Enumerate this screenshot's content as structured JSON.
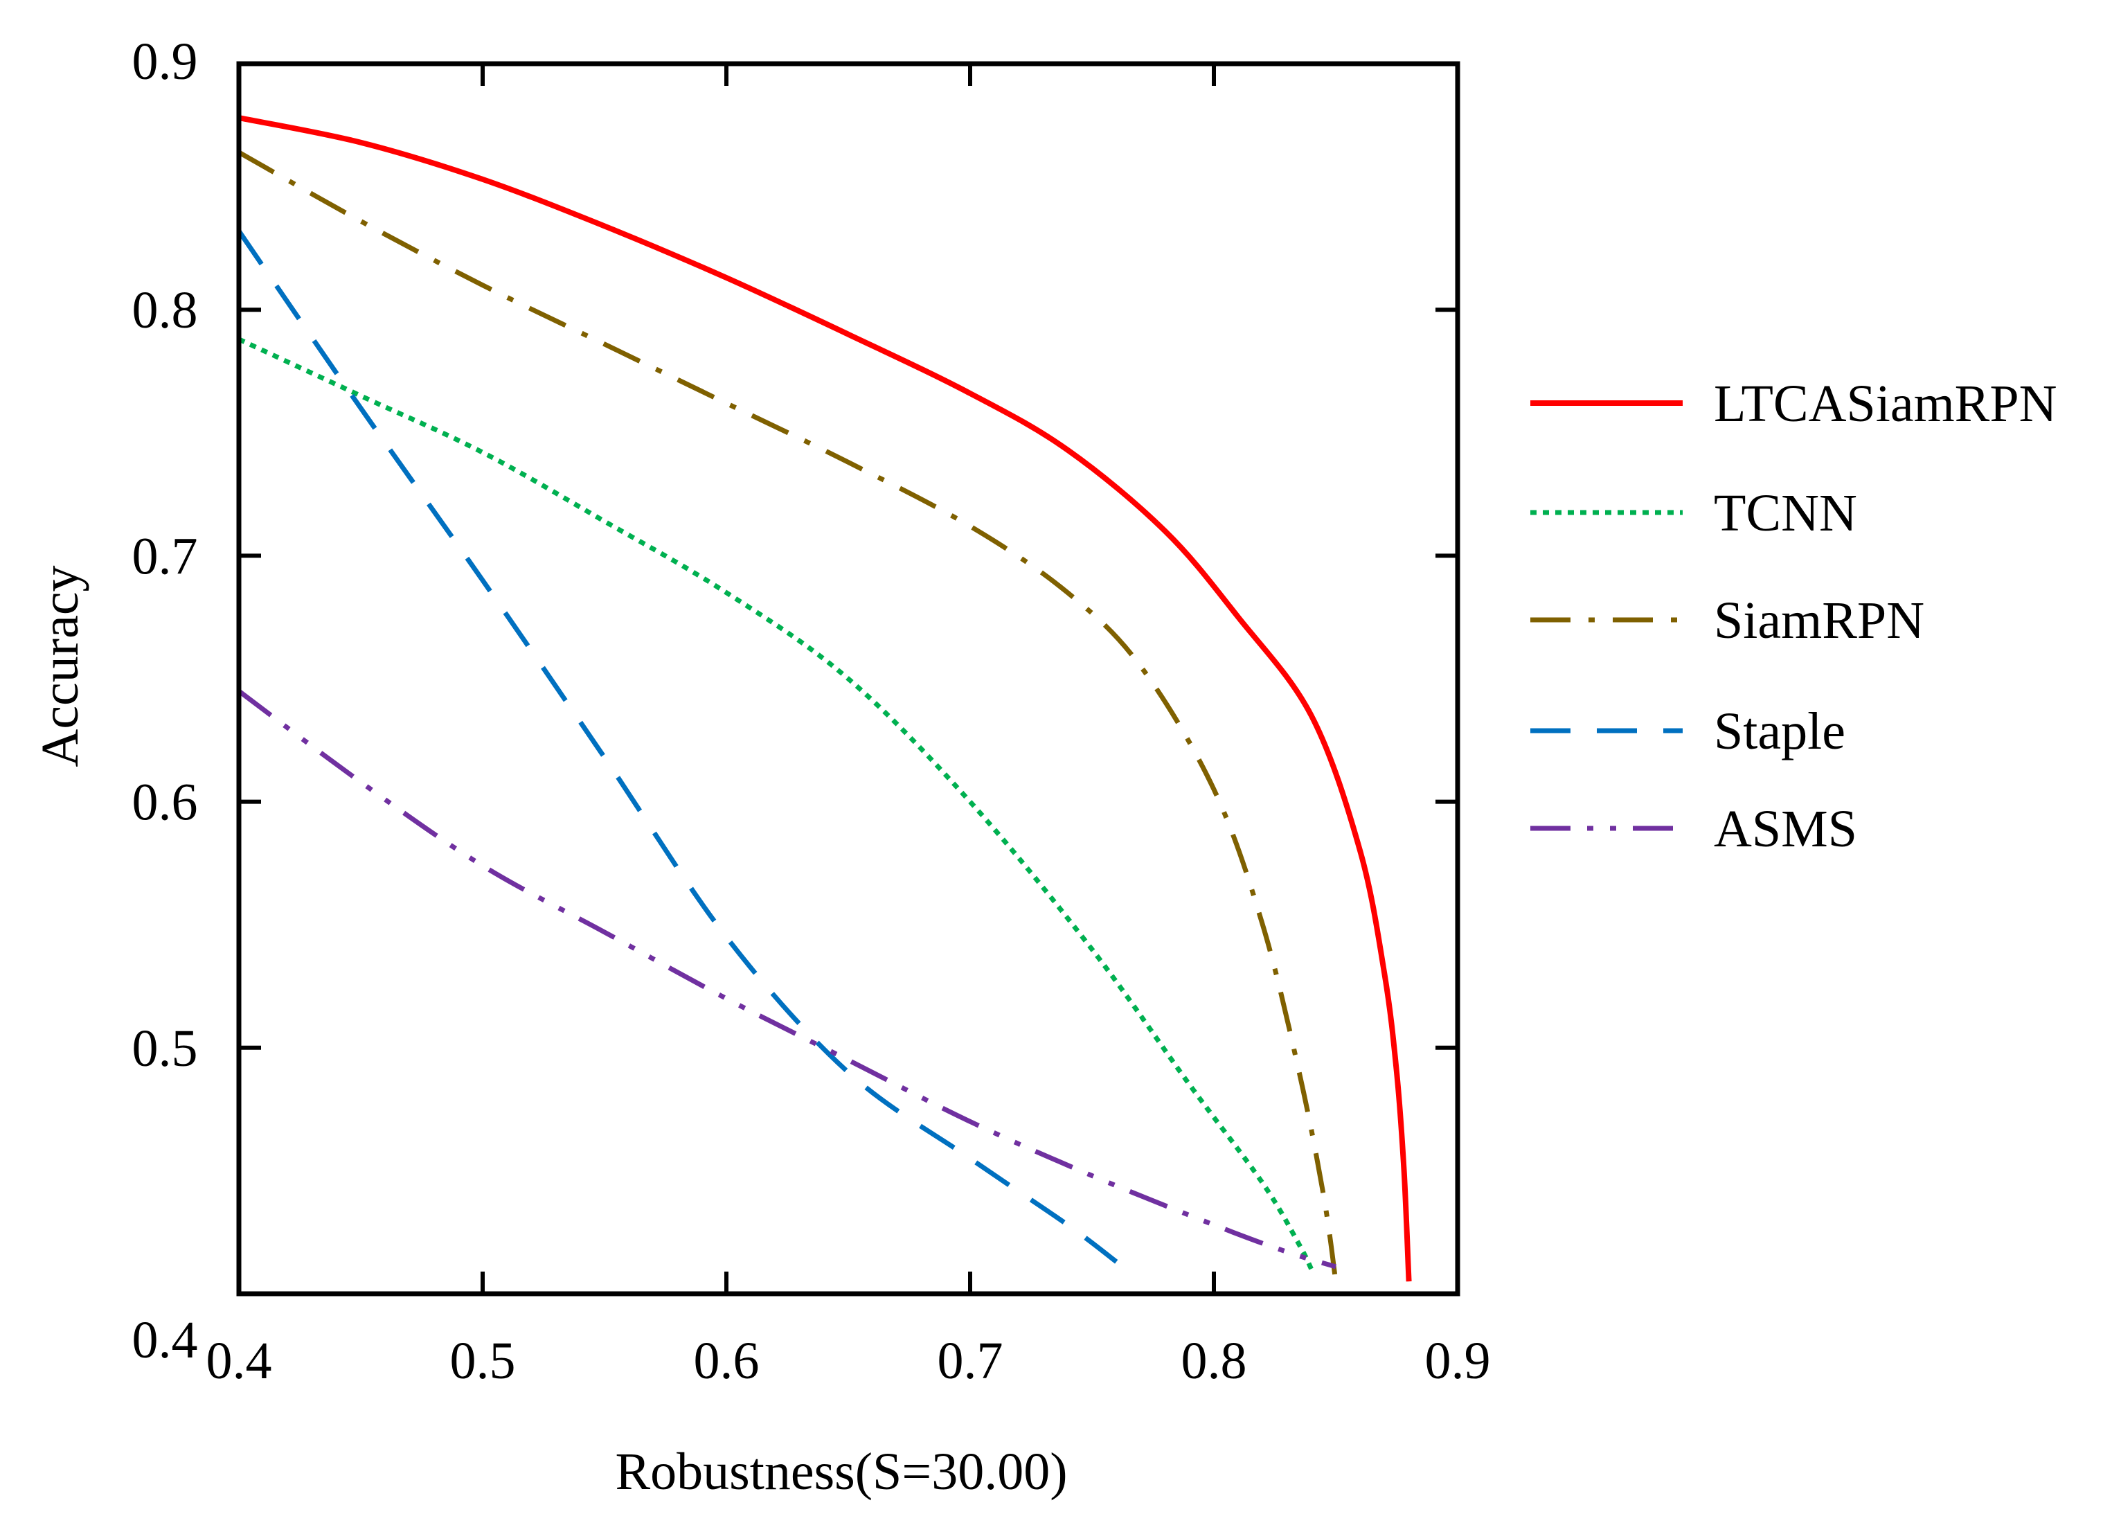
{
  "chart_data": {
    "type": "line",
    "title": "",
    "xlabel": "Robustness(S=30.00)",
    "ylabel": "Accuracy",
    "xlim": [
      0.4,
      0.9
    ],
    "ylim": [
      0.4,
      0.9
    ],
    "xticks": [
      0.4,
      0.5,
      0.6,
      0.7,
      0.8,
      0.9
    ],
    "yticks": [
      0.4,
      0.5,
      0.6,
      0.7,
      0.8,
      0.9
    ],
    "xtick_labels": [
      "0.4",
      "0.5",
      "0.6",
      "0.7",
      "0.8",
      "0.9"
    ],
    "ytick_labels": [
      "0.4",
      "0.5",
      "0.6",
      "0.7",
      "0.8",
      "0.9"
    ],
    "grid": false,
    "legend_position": "right",
    "series": [
      {
        "name": "LTCASiamRPN",
        "color": "#ff0000",
        "style": "solid",
        "x": [
          0.4,
          0.45,
          0.5,
          0.55,
          0.6,
          0.65,
          0.7,
          0.74,
          0.78,
          0.81,
          0.84,
          0.86,
          0.87,
          0.875,
          0.878,
          0.88
        ],
        "y": [
          0.878,
          0.868,
          0.853,
          0.834,
          0.813,
          0.79,
          0.766,
          0.743,
          0.71,
          0.675,
          0.635,
          0.58,
          0.53,
          0.49,
          0.45,
          0.405
        ]
      },
      {
        "name": "TCNN",
        "color": "#00b050",
        "style": "dotted",
        "x": [
          0.4,
          0.45,
          0.5,
          0.55,
          0.6,
          0.65,
          0.7,
          0.75,
          0.79,
          0.82,
          0.835,
          0.84
        ],
        "y": [
          0.788,
          0.765,
          0.742,
          0.714,
          0.685,
          0.65,
          0.6,
          0.54,
          0.485,
          0.445,
          0.42,
          0.41
        ]
      },
      {
        "name": "SiamRPN",
        "color": "#7f6000",
        "style": "dashdot",
        "x": [
          0.4,
          0.45,
          0.5,
          0.55,
          0.6,
          0.65,
          0.7,
          0.74,
          0.77,
          0.8,
          0.82,
          0.835,
          0.845,
          0.85
        ],
        "y": [
          0.864,
          0.836,
          0.81,
          0.786,
          0.762,
          0.738,
          0.712,
          0.685,
          0.655,
          0.605,
          0.55,
          0.49,
          0.44,
          0.405
        ]
      },
      {
        "name": "Staple",
        "color": "#0070c0",
        "style": "dashed",
        "x": [
          0.4,
          0.45,
          0.5,
          0.55,
          0.6,
          0.65,
          0.7,
          0.74,
          0.76
        ],
        "y": [
          0.832,
          0.76,
          0.69,
          0.618,
          0.545,
          0.49,
          0.455,
          0.428,
          0.413
        ]
      },
      {
        "name": "ASMS",
        "color": "#7030a0",
        "style": "dashdotdot",
        "x": [
          0.4,
          0.45,
          0.5,
          0.55,
          0.6,
          0.65,
          0.7,
          0.75,
          0.8,
          0.83,
          0.85
        ],
        "y": [
          0.645,
          0.608,
          0.574,
          0.547,
          0.52,
          0.495,
          0.47,
          0.448,
          0.428,
          0.417,
          0.411
        ]
      }
    ]
  }
}
